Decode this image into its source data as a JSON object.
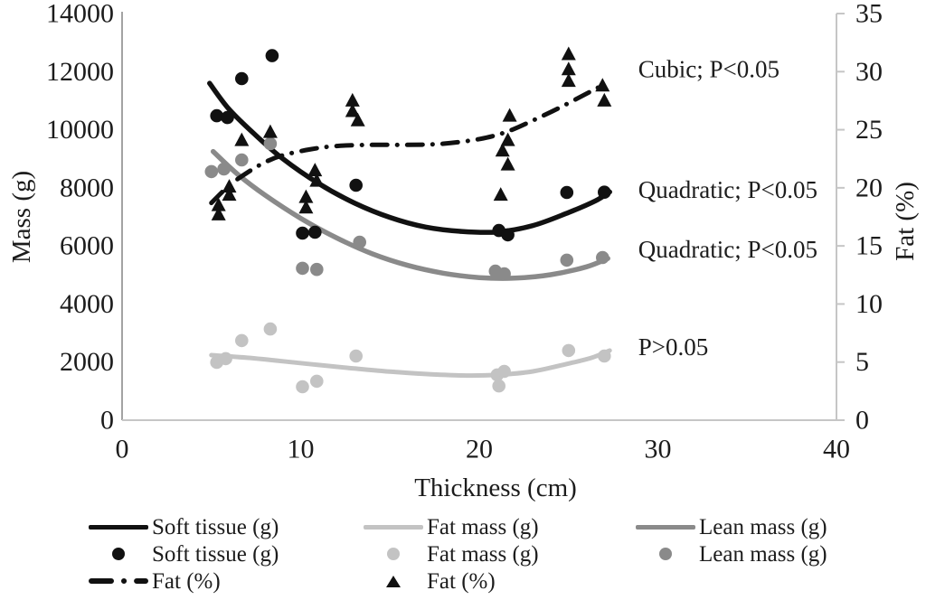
{
  "colors": {
    "black_series": "#111111",
    "lean_gray": "#8a8a8a",
    "fat_light_gray": "#c3c3c3",
    "axis_left": "#a3a3a3",
    "axis_other": "#c6c6c6",
    "text": "#1c1c1c"
  },
  "chart_data": {
    "type": "scatter",
    "grid": false,
    "x_axis": {
      "label": "Thickness (cm)",
      "range": [
        0,
        40
      ],
      "ticks": [
        0,
        10,
        20,
        30,
        40
      ]
    },
    "y_axis_left": {
      "label": "Mass (g)",
      "range": [
        0,
        14000
      ],
      "ticks": [
        0,
        2000,
        4000,
        6000,
        8000,
        10000,
        12000,
        14000
      ]
    },
    "y_axis_right": {
      "label": "Fat (%)",
      "range": [
        0,
        35
      ],
      "ticks": [
        0,
        5,
        10,
        15,
        20,
        25,
        30,
        35
      ]
    },
    "series": [
      {
        "name": "Soft tissue (g)",
        "axis": "left",
        "marker": "circle",
        "color": "#111111",
        "points": [
          [
            5.3,
            10480
          ],
          [
            5.9,
            10420
          ],
          [
            6.7,
            11760
          ],
          [
            8.4,
            12550
          ],
          [
            10.1,
            6440
          ],
          [
            10.8,
            6470
          ],
          [
            13.1,
            8090
          ],
          [
            21.1,
            6530
          ],
          [
            21.6,
            6380
          ],
          [
            24.9,
            7840
          ],
          [
            27.0,
            7850
          ]
        ]
      },
      {
        "name": "Lean mass (g)",
        "axis": "left",
        "marker": "circle",
        "color": "#8a8a8a",
        "points": [
          [
            5.0,
            8560
          ],
          [
            5.7,
            8650
          ],
          [
            6.7,
            8960
          ],
          [
            8.3,
            9520
          ],
          [
            10.1,
            5230
          ],
          [
            10.9,
            5190
          ],
          [
            13.3,
            6130
          ],
          [
            20.9,
            5130
          ],
          [
            21.4,
            5040
          ],
          [
            24.9,
            5510
          ],
          [
            26.9,
            5600
          ]
        ]
      },
      {
        "name": "Fat mass (g)",
        "axis": "left",
        "marker": "circle",
        "color": "#c3c3c3",
        "points": [
          [
            5.3,
            1990
          ],
          [
            5.8,
            2120
          ],
          [
            6.7,
            2740
          ],
          [
            8.3,
            3140
          ],
          [
            10.1,
            1150
          ],
          [
            10.9,
            1340
          ],
          [
            13.1,
            2210
          ],
          [
            21.0,
            1560
          ],
          [
            21.4,
            1680
          ],
          [
            21.1,
            1180
          ],
          [
            25.0,
            2400
          ],
          [
            27.0,
            2210
          ]
        ]
      },
      {
        "name": "Fat (%)",
        "axis": "right",
        "marker": "triangle",
        "color": "#111111",
        "points": [
          [
            5.4,
            18.5
          ],
          [
            5.4,
            17.7
          ],
          [
            6.0,
            20.1
          ],
          [
            6.0,
            19.4
          ],
          [
            6.7,
            24.1
          ],
          [
            8.3,
            24.8
          ],
          [
            10.3,
            19.2
          ],
          [
            10.3,
            18.3
          ],
          [
            10.8,
            21.5
          ],
          [
            10.9,
            20.6
          ],
          [
            12.9,
            27.5
          ],
          [
            12.9,
            26.6
          ],
          [
            13.2,
            25.8
          ],
          [
            21.2,
            19.4
          ],
          [
            21.6,
            22.0
          ],
          [
            21.3,
            23.2
          ],
          [
            21.6,
            24.1
          ],
          [
            21.7,
            26.2
          ],
          [
            25.0,
            31.5
          ],
          [
            25.0,
            30.2
          ],
          [
            25.0,
            29.2
          ],
          [
            26.9,
            28.8
          ],
          [
            27.0,
            27.5
          ]
        ]
      }
    ],
    "trend_lines": [
      {
        "name": "Soft tissue (g)",
        "axis": "left",
        "style": "solid",
        "color": "#111111",
        "width": 5.5,
        "points": [
          [
            4.9,
            11600
          ],
          [
            6,
            10700
          ],
          [
            7.5,
            9800
          ],
          [
            9,
            9000
          ],
          [
            11,
            8150
          ],
          [
            13,
            7480
          ],
          [
            15,
            6980
          ],
          [
            17,
            6650
          ],
          [
            19,
            6500
          ],
          [
            21,
            6480
          ],
          [
            23,
            6700
          ],
          [
            25,
            7150
          ],
          [
            26.5,
            7550
          ],
          [
            27.3,
            7860
          ]
        ]
      },
      {
        "name": "Lean mass (g)",
        "axis": "left",
        "style": "solid",
        "color": "#8a8a8a",
        "width": 5.5,
        "points": [
          [
            5.1,
            9250
          ],
          [
            6.5,
            8450
          ],
          [
            8,
            7750
          ],
          [
            10,
            6950
          ],
          [
            12,
            6280
          ],
          [
            14,
            5730
          ],
          [
            16,
            5330
          ],
          [
            18,
            5060
          ],
          [
            20,
            4910
          ],
          [
            22,
            4890
          ],
          [
            24,
            5010
          ],
          [
            26,
            5280
          ],
          [
            27.2,
            5570
          ]
        ]
      },
      {
        "name": "Fat mass (g)",
        "axis": "left",
        "style": "solid",
        "color": "#c3c3c3",
        "width": 5,
        "points": [
          [
            5.0,
            2240
          ],
          [
            7,
            2150
          ],
          [
            9,
            2030
          ],
          [
            11,
            1900
          ],
          [
            13,
            1780
          ],
          [
            15,
            1670
          ],
          [
            17,
            1590
          ],
          [
            19,
            1540
          ],
          [
            21,
            1560
          ],
          [
            23,
            1680
          ],
          [
            25,
            1950
          ],
          [
            26.3,
            2150
          ],
          [
            27.3,
            2400
          ]
        ]
      },
      {
        "name": "Fat (%)",
        "axis": "right",
        "style": "dashdot",
        "color": "#111111",
        "width": 5,
        "points": [
          [
            5.0,
            18.7
          ],
          [
            6,
            20.2
          ],
          [
            7,
            21.3
          ],
          [
            8,
            22.2
          ],
          [
            9,
            22.8
          ],
          [
            10.5,
            23.3
          ],
          [
            12,
            23.6
          ],
          [
            14,
            23.7
          ],
          [
            16,
            23.7
          ],
          [
            18,
            23.8
          ],
          [
            20,
            24.2
          ],
          [
            21.5,
            24.8
          ],
          [
            23,
            25.8
          ],
          [
            24.5,
            26.9
          ],
          [
            26,
            28.1
          ],
          [
            27.1,
            29.0
          ]
        ]
      }
    ],
    "annotations": [
      {
        "text": "Cubic; P<0.05",
        "axis": "right",
        "x": 28.9,
        "y": 30.2
      },
      {
        "text": "Quadratic; P<0.05",
        "axis": "left",
        "x": 28.9,
        "y": 7930
      },
      {
        "text": "Quadratic; P<0.05",
        "axis": "left",
        "x": 28.9,
        "y": 5880
      },
      {
        "text": "P>0.05",
        "axis": "left",
        "x": 28.9,
        "y": 2520
      }
    ]
  },
  "legend": {
    "columns": [
      {
        "x": 98,
        "items": [
          {
            "swatch": "line",
            "color": "#111111",
            "label": "Soft tissue (g)"
          },
          {
            "swatch": "dot",
            "color": "#111111",
            "label": "Soft tissue (g)"
          },
          {
            "swatch": "dashdot",
            "color": "#111111",
            "label": "Fat (%)"
          }
        ]
      },
      {
        "x": 402,
        "items": [
          {
            "swatch": "line",
            "color": "#c3c3c3",
            "label": "Fat mass (g)"
          },
          {
            "swatch": "dot",
            "color": "#c3c3c3",
            "label": "Fat mass (g)"
          },
          {
            "swatch": "triangle",
            "color": "#111111",
            "label": "Fat (%)"
          }
        ]
      },
      {
        "x": 703,
        "items": [
          {
            "swatch": "line",
            "color": "#8a8a8a",
            "label": "Lean mass (g)"
          },
          {
            "swatch": "dot",
            "color": "#8a8a8a",
            "label": "Lean mass (g)"
          }
        ]
      }
    ]
  }
}
